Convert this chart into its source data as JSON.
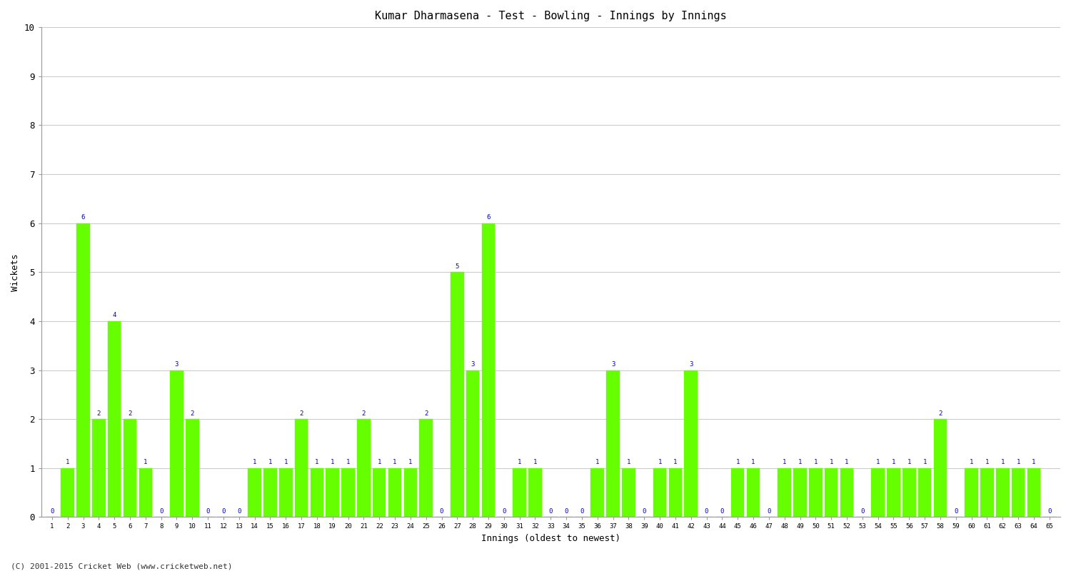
{
  "title": "Kumar Dharmasena - Test - Bowling - Innings by Innings",
  "xlabel": "Innings (oldest to newest)",
  "ylabel": "Wickets",
  "background_color": "#ffffff",
  "bar_color": "#66ff00",
  "label_color": "#0000cd",
  "grid_color": "#cccccc",
  "ylim": [
    0,
    10
  ],
  "yticks": [
    0,
    1,
    2,
    3,
    4,
    5,
    6,
    7,
    8,
    9,
    10
  ],
  "wickets": [
    0,
    1,
    6,
    2,
    4,
    2,
    1,
    0,
    3,
    2,
    0,
    0,
    0,
    1,
    1,
    1,
    2,
    1,
    1,
    1,
    2,
    1,
    1,
    1,
    2,
    0,
    5,
    3,
    6,
    0,
    1,
    1,
    0,
    0,
    0,
    1,
    3,
    1,
    0,
    1,
    1,
    3,
    0,
    0,
    1,
    1,
    0,
    1,
    1,
    1,
    1,
    1,
    0,
    1,
    1,
    1,
    1,
    2,
    0,
    1,
    1,
    1,
    1,
    1,
    0
  ],
  "footer": "(C) 2001-2015 Cricket Web (www.cricketweb.net)"
}
